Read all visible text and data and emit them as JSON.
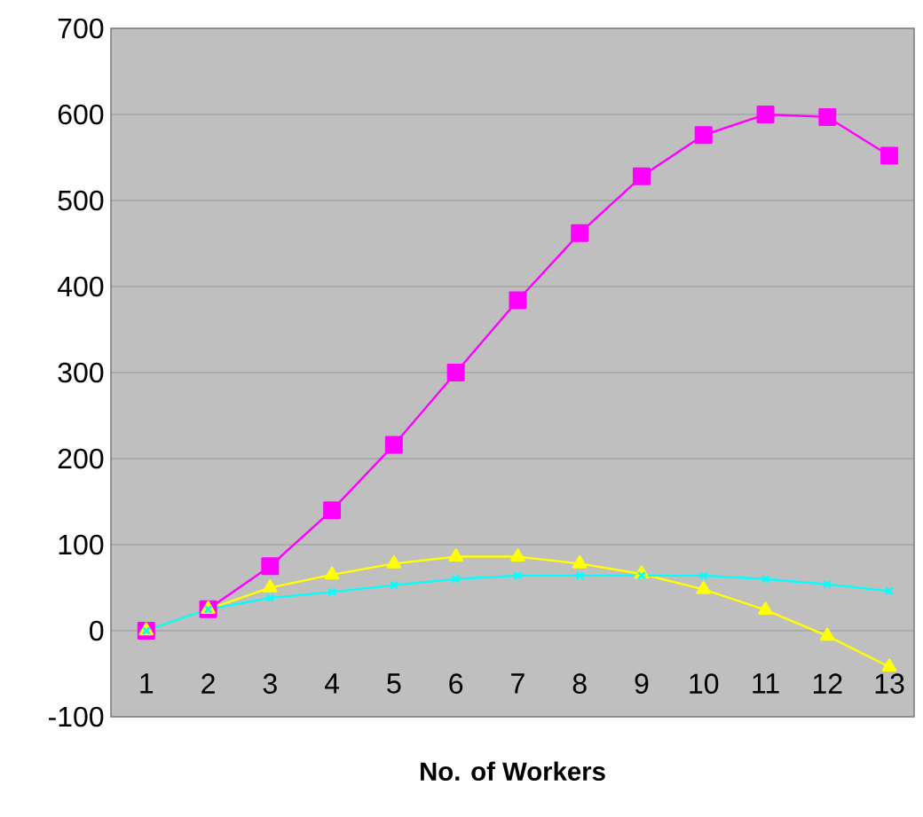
{
  "chart_data": {
    "type": "line",
    "xlabel": "No. of Workers",
    "categories": [
      "1",
      "2",
      "3",
      "4",
      "5",
      "6",
      "7",
      "8",
      "9",
      "10",
      "11",
      "12",
      "13"
    ],
    "series": [
      {
        "color": "#ff00ff",
        "marker": "square",
        "values": [
          0,
          25,
          75,
          140,
          216,
          300,
          384,
          462,
          528,
          576,
          600,
          597,
          552
        ]
      },
      {
        "color": "#ffff00",
        "marker": "triangle",
        "values": [
          0,
          25,
          50,
          65,
          78,
          86,
          86,
          78,
          66,
          48,
          24,
          -6,
          -42
        ]
      },
      {
        "color": "#00ffff",
        "marker": "cross",
        "values": [
          0,
          25,
          38,
          45,
          53,
          60,
          64,
          64,
          64,
          64,
          60,
          54,
          46
        ]
      }
    ],
    "ylim": [
      -100,
      700
    ],
    "yticks": [
      -100,
      0,
      100,
      200,
      300,
      400,
      500,
      600,
      700
    ],
    "grid": "y",
    "line_style": "solid"
  }
}
